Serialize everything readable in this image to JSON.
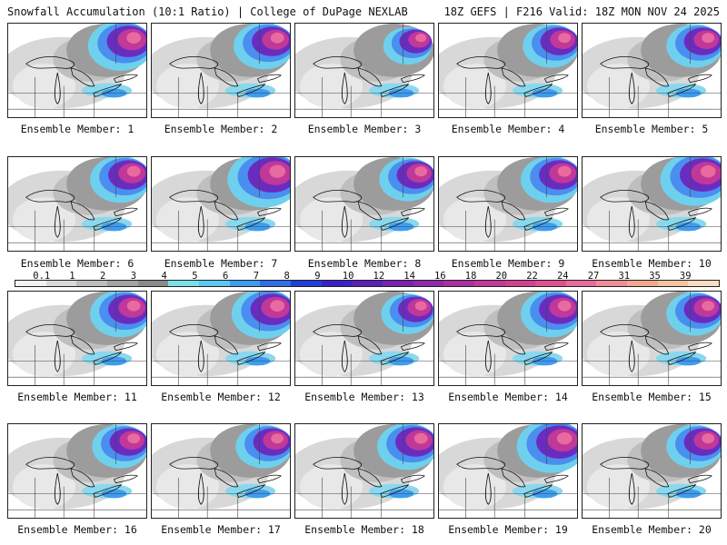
{
  "header": {
    "title": "Snowfall Accumulation (10:1 Ratio) | College of DuPage NEXLAB",
    "run_info": "18Z GEFS | F216 Valid: 18Z MON NOV 24 2025"
  },
  "colorbar": {
    "ticks": [
      "0.1",
      "1",
      "2",
      "3",
      "4",
      "5",
      "6",
      "7",
      "8",
      "9",
      "10",
      "12",
      "14",
      "16",
      "18",
      "20",
      "22",
      "24",
      "27",
      "31",
      "35",
      "39"
    ],
    "colors": [
      "#f2f2f2",
      "#d9d9d9",
      "#bdbdbd",
      "#a3a3a3",
      "#8a8a8a",
      "#7ae0e8",
      "#5ac8f0",
      "#3e9cf0",
      "#2f6fe8",
      "#1f3fd8",
      "#3a20c8",
      "#5a20b8",
      "#7a22b0",
      "#9028a8",
      "#a830a0",
      "#c03898",
      "#d24090",
      "#e05090",
      "#e86aa0",
      "#f08c98",
      "#f2a890",
      "#f4c4a0",
      "#f8dcc0"
    ]
  },
  "members": [
    {
      "label": "Ensemble Member: 1",
      "intensity": 0.8
    },
    {
      "label": "Ensemble Member: 2",
      "intensity": 0.75
    },
    {
      "label": "Ensemble Member: 3",
      "intensity": 0.6
    },
    {
      "label": "Ensemble Member: 4",
      "intensity": 0.7
    },
    {
      "label": "Ensemble Member: 5",
      "intensity": 0.7
    },
    {
      "label": "Ensemble Member: 6",
      "intensity": 0.75
    },
    {
      "label": "Ensemble Member: 7",
      "intensity": 0.9
    },
    {
      "label": "Ensemble Member: 8",
      "intensity": 0.7
    },
    {
      "label": "Ensemble Member: 9",
      "intensity": 0.75
    },
    {
      "label": "Ensemble Member: 10",
      "intensity": 0.85
    },
    {
      "label": "Ensemble Member: 11",
      "intensity": 0.75
    },
    {
      "label": "Ensemble Member: 12",
      "intensity": 0.8
    },
    {
      "label": "Ensemble Member: 13",
      "intensity": 0.65
    },
    {
      "label": "Ensemble Member: 14",
      "intensity": 0.75
    },
    {
      "label": "Ensemble Member: 15",
      "intensity": 0.7
    },
    {
      "label": "Ensemble Member: 16",
      "intensity": 0.7
    },
    {
      "label": "Ensemble Member: 17",
      "intensity": 0.7
    },
    {
      "label": "Ensemble Member: 18",
      "intensity": 0.75
    },
    {
      "label": "Ensemble Member: 19",
      "intensity": 0.85
    },
    {
      "label": "Ensemble Member: 20",
      "intensity": 0.7
    }
  ]
}
